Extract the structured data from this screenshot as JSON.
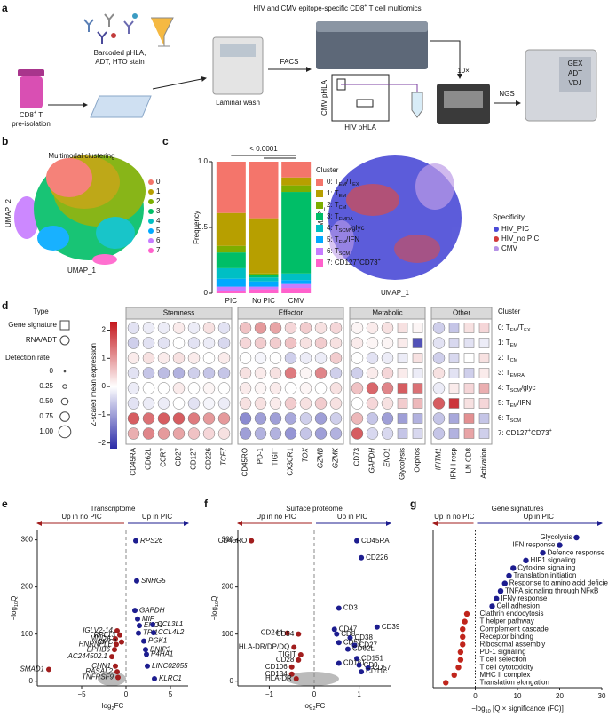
{
  "figure": {
    "panel_labels": [
      "a",
      "b",
      "c",
      "d",
      "e",
      "f",
      "g"
    ],
    "a": {
      "title": [
        "HIV and CMV epitope-specific CD8",
        "+",
        " T cell multiomics"
      ],
      "stain": [
        "Barcoded pHLA,",
        "ADT, HTO stain"
      ],
      "pre": [
        "CD8",
        "+",
        " T"
      ],
      "pre2": "pre-isolation",
      "laminar": "Laminar wash",
      "facs": "FACS",
      "gate_y": "CMV pHLA",
      "gate_x": "HIV pHLA",
      "tenx": "10×",
      "ngs": "NGS",
      "outputs": [
        "GEX",
        "ADT",
        "VDJ"
      ]
    },
    "b": {
      "title": "Multimodal clustering",
      "x_label": "UMAP_1",
      "y_label": "UMAP_2",
      "legend": [
        "0",
        "1",
        "2",
        "3",
        "4",
        "5",
        "6",
        "7"
      ],
      "colors": [
        "#f4756b",
        "#b79f00",
        "#7cae00",
        "#00be67",
        "#00bfc4",
        "#00a9ff",
        "#c77cff",
        "#ff61cc"
      ]
    },
    "c_umap": {
      "x_label": "UMAP_1",
      "y_label": "UMAP_2",
      "legend_title": "Specificity",
      "legend": [
        "HIV_PIC",
        "HIV_no PIC",
        "CMV"
      ],
      "colors": [
        "#4b4bd6",
        "#d23a3a",
        "#b592e6"
      ]
    }
  },
  "chart_data": [
    {
      "type": "stacked_bar",
      "p_label": "< 0.0001",
      "y_label": "Frequency",
      "legend_title": "Cluster",
      "categories": [
        "PIC",
        "No PIC",
        "CMV"
      ],
      "ylim": [
        0,
        1
      ],
      "yticks": [
        0,
        0.5,
        {
          "value": 1,
          "label": "1.0"
        }
      ],
      "series": [
        {
          "name": [
            "0: T",
            "EM",
            "/T",
            "EX"
          ],
          "color": "#f4756b",
          "values": [
            0.39,
            0.43,
            0.12
          ]
        },
        {
          "name": [
            "1: T",
            "EM"
          ],
          "color": "#b79f00",
          "values": [
            0.25,
            0.42,
            0.06
          ]
        },
        {
          "name": [
            "2: T",
            "CM"
          ],
          "color": "#7cae00",
          "values": [
            0.05,
            0.01,
            0.05
          ]
        },
        {
          "name": [
            "3: T",
            "EMRA"
          ],
          "color": "#00be67",
          "values": [
            0.12,
            0.02,
            0.62
          ]
        },
        {
          "name": [
            "4: T",
            "SCM",
            "/glyc"
          ],
          "color": "#00bfc4",
          "values": [
            0.08,
            0.03,
            0.05
          ]
        },
        {
          "name": [
            "5: T",
            "EM",
            "/IFN"
          ],
          "color": "#00a9ff",
          "values": [
            0.06,
            0.04,
            0.03
          ]
        },
        {
          "name": [
            "6: T",
            "SCM"
          ],
          "color": "#c77cff",
          "values": [
            0.03,
            0.02,
            0.03
          ]
        },
        {
          "name": [
            "7: CD127",
            "+",
            "CD73",
            "+"
          ],
          "color": "#ff61cc",
          "values": [
            0.02,
            0.03,
            0.04
          ],
          "sup": true
        }
      ]
    },
    {
      "type": "dot_matrix",
      "colorbar_label": "Z-scaled mean expression",
      "clim": [
        -2.2,
        2.3
      ],
      "cticks": [
        {
          "value": -2,
          "label": "−2"
        },
        {
          "value": -1,
          "label": "−1"
        },
        0,
        1,
        2
      ],
      "colors": [
        "#2b2ba8",
        "#ffffff",
        "#c4161c"
      ],
      "type_title": "Type",
      "types": [
        "Gene signature",
        "RNA/ADT"
      ],
      "size_title": "Detection rate",
      "size_ticks": [
        0,
        0.25,
        {
          "value": 0.5,
          "label": "0.50"
        },
        0.75,
        {
          "value": 1,
          "label": "1.00"
        }
      ],
      "legend_title": "Cluster",
      "row_labels": [
        [
          "0: T",
          "EM",
          "/T",
          "EX"
        ],
        [
          "1: T",
          "EM"
        ],
        [
          "2: T",
          "CM"
        ],
        [
          "3: T",
          "EMRA"
        ],
        [
          "4: T",
          "SCM",
          "/glyc"
        ],
        [
          "5: T",
          "EM",
          "/IFN"
        ],
        [
          "6: T",
          "SCM"
        ],
        [
          "7: CD127",
          "+",
          "CD73",
          "+"
        ]
      ],
      "groups": [
        {
          "name": "Stemness",
          "columns": [
            "CD45RA",
            "CD62L",
            "CCR7",
            "CD27",
            "CD127",
            "CD226",
            "TCF7"
          ],
          "kinds": [
            "adt",
            "adt",
            "adt",
            "adt",
            "adt",
            "adt",
            "rna"
          ],
          "values": [
            [
              -0.3,
              -0.2,
              -0.2,
              0.2,
              -0.2,
              0.3,
              -0.3
            ],
            [
              -0.5,
              -0.3,
              -0.3,
              0,
              -0.3,
              -0.2,
              -0.4
            ],
            [
              0.2,
              0.3,
              0.2,
              0.3,
              0.2,
              0,
              0.2
            ],
            [
              -0.3,
              -0.6,
              -0.7,
              -0.8,
              -0.5,
              -0.6,
              -0.6
            ],
            [
              -0.2,
              0,
              0,
              0.2,
              0,
              0.1,
              0
            ],
            [
              -0.3,
              -0.2,
              -0.2,
              0,
              -0.3,
              -0.1,
              -0.2
            ],
            [
              1.6,
              1.4,
              1.6,
              1.6,
              1.3,
              1.0,
              1.0
            ],
            [
              0.8,
              1.2,
              1.0,
              0.9,
              0.6,
              0.4,
              0.3
            ]
          ]
        },
        {
          "name": "Effector",
          "columns": [
            "CD45RO",
            "PD-1",
            "TIGIT",
            "CX3CR1",
            "TOX",
            "GZMB",
            "GZMK"
          ],
          "kinds": [
            "adt",
            "adt",
            "adt",
            "adt",
            "rna",
            "rna",
            "rna"
          ],
          "values": [
            [
              0.6,
              1.0,
              0.9,
              0.4,
              0.5,
              0.3,
              0.4
            ],
            [
              0.4,
              0.5,
              0.5,
              0.6,
              0.3,
              0.5,
              0.3
            ],
            [
              0,
              -0.1,
              0,
              -0.5,
              -0.2,
              -0.2,
              0.5
            ],
            [
              0.3,
              0.2,
              0.3,
              1.3,
              0.1,
              1.2,
              -0.5
            ],
            [
              0.2,
              0.1,
              0.2,
              0,
              0.1,
              0,
              0.3
            ],
            [
              0.3,
              0.3,
              0.2,
              0.5,
              0.3,
              0.5,
              0.3
            ],
            [
              -1.2,
              -1.0,
              -1.0,
              -0.9,
              -0.5,
              -1.0,
              -0.5
            ],
            [
              -1.0,
              -0.8,
              -0.8,
              -1.1,
              -0.6,
              -1.0,
              -0.8
            ]
          ]
        },
        {
          "name": "Metabolic",
          "columns": [
            "CD73",
            "GAPDH",
            "ENO1",
            "Glycolysis",
            "Oxphos"
          ],
          "kinds": [
            "adt",
            "rna",
            "rna",
            "signature",
            "signature"
          ],
          "values": [
            [
              0.1,
              0.2,
              0.3,
              0.3,
              0.1
            ],
            [
              0.2,
              0.1,
              0.1,
              0.2,
              -1.8
            ],
            [
              0,
              -0.3,
              -0.2,
              -0.2,
              0.3
            ],
            [
              -0.5,
              0.2,
              0.4,
              0.2,
              -0.2
            ],
            [
              0.6,
              1.5,
              1.2,
              1.6,
              1.4
            ],
            [
              0,
              0.4,
              0.3,
              0.5,
              0.7
            ],
            [
              0.7,
              -0.6,
              -1.0,
              -1.0,
              -0.8
            ],
            [
              1.6,
              -0.4,
              -0.4,
              -0.6,
              -0.4
            ]
          ]
        },
        {
          "name": "Other",
          "columns": [
            "IFITM1",
            "IFN-I resp",
            "LN CD8",
            "Activation"
          ],
          "kinds": [
            "rna",
            "signature",
            "signature",
            "signature"
          ],
          "values": [
            [
              -0.5,
              -0.6,
              0.3,
              0.4
            ],
            [
              -0.3,
              -0.4,
              -0.3,
              -0.2
            ],
            [
              -0.5,
              -0.4,
              0,
              0.3
            ],
            [
              0.3,
              -0.3,
              -0.5,
              0.2
            ],
            [
              -0.2,
              0.2,
              0.4,
              0.8
            ],
            [
              1.6,
              2.0,
              0.3,
              0.4
            ],
            [
              -0.6,
              -0.9,
              1.1,
              -0.6
            ],
            [
              -0.6,
              -0.8,
              0.9,
              -0.5
            ]
          ]
        }
      ]
    },
    {
      "type": "volcano",
      "title": "Transcriptome",
      "left_label": "Up in no PIC",
      "right_label": "Up in PIC",
      "x_label": [
        "log",
        "2",
        "FC"
      ],
      "y_label": [
        "−log",
        "10",
        "Q"
      ],
      "xlim": [
        -10,
        7
      ],
      "xticks": [
        {
          "value": -5,
          "label": "−5"
        },
        0,
        5
      ],
      "ylim": [
        -10,
        320
      ],
      "yticks": [
        0,
        100,
        200,
        300
      ],
      "series": [
        {
          "color": "#a11d1d",
          "labels": [
            "IGLV2-14",
            "RPL13",
            "MNDA",
            "CMC1",
            "HNRNPLL",
            "EPHB6",
            "AC244502.1",
            "CHN1",
            "RASAL2",
            "TNFRSF9",
            "SMAD1"
          ],
          "x": [
            -1.0,
            -0.7,
            -1.2,
            -0.5,
            -1.1,
            -1.3,
            -1.6,
            -1.2,
            -1.0,
            -0.9,
            -8.7
          ],
          "y": [
            107,
            98,
            90,
            83,
            78,
            67,
            52,
            32,
            20,
            8,
            25
          ]
        },
        {
          "color": "#1d1d8f",
          "labels": [
            "RPS26",
            "SNHG5",
            "GAPDH",
            "MIF",
            "ENO1",
            "TPI1",
            "CCL3L1",
            "CCL4L2",
            "PGK1",
            "BNIP3",
            "P4HA1",
            "LINC02055",
            "KLRC1"
          ],
          "x": [
            1.1,
            1.2,
            1.0,
            1.3,
            1.5,
            1.4,
            3.0,
            3.1,
            2.0,
            2.2,
            2.3,
            2.4,
            3.2
          ],
          "y": [
            298,
            213,
            150,
            132,
            118,
            102,
            120,
            103,
            85,
            67,
            57,
            32,
            5
          ]
        }
      ]
    },
    {
      "type": "volcano",
      "title": "Surface proteome",
      "left_label": "Up in no PIC",
      "right_label": "Up in PIC",
      "x_label": [
        "log",
        "2",
        "FC"
      ],
      "y_label": [
        "−log",
        "10",
        "Q"
      ],
      "xlim": [
        -1.7,
        1.7
      ],
      "xticks": [
        {
          "value": -1,
          "label": "−1"
        },
        0,
        1
      ],
      "ylim": [
        -10,
        320
      ],
      "yticks": [
        0,
        100,
        200,
        300
      ],
      "series": [
        {
          "color": "#a11d1d",
          "labels": [
            "CD45RO",
            "CD244",
            "CD54",
            "HLA-DR/DP/DQ",
            "TIGIT",
            "CD28",
            "CD106",
            "CD134",
            "HLA-DR"
          ],
          "x": [
            -1.4,
            -0.6,
            -0.35,
            -0.45,
            -0.3,
            -0.35,
            -0.5,
            -0.5,
            -0.4
          ],
          "y": [
            298,
            102,
            100,
            72,
            56,
            45,
            30,
            15,
            5
          ]
        },
        {
          "color": "#1d1d8f",
          "labels": [
            "CD45RA",
            "CD226",
            "CD3",
            "CD39",
            "CD47",
            "CD8",
            "CD38",
            "CD52",
            "CD27",
            "CD62L",
            "CD151",
            "CD161",
            "CD9",
            "CD57",
            "CD11c"
          ],
          "x": [
            0.95,
            1.05,
            0.55,
            1.4,
            0.45,
            0.5,
            0.8,
            0.55,
            0.9,
            0.75,
            0.95,
            0.55,
            1.0,
            1.2,
            1.05
          ],
          "y": [
            298,
            262,
            155,
            115,
            110,
            100,
            92,
            82,
            76,
            68,
            48,
            38,
            34,
            28,
            20
          ]
        }
      ]
    },
    {
      "type": "dot",
      "title": "Gene signatures",
      "left_label": "Up in no PIC",
      "right_label": "Up in PIC",
      "x_label": [
        "−log",
        "10",
        " [Q × significance (FC)]"
      ],
      "xlim": [
        -10,
        30
      ],
      "xticks": [
        0,
        10,
        20,
        30
      ],
      "pos_color": "#1d1d8f",
      "neg_color": "#c0251c",
      "categories": [
        "Glycolysis",
        "IFN response",
        "Defence response",
        "HIF1 signaling",
        "Cytokine signaling",
        "Translation initiation",
        "Response to amino acid deficiency",
        "TNFA signaling through NFκB",
        "IFNγ response",
        "Cell adhesion",
        "Clathrin endocytosis",
        "T helper pathway",
        "Complement cascade",
        "Receptor binding",
        "Ribosomal assembly",
        "PD-1 signaling",
        "T cell selection",
        "T cell cytotoxicity",
        "MHC II complex",
        "Translation elongation"
      ],
      "values": [
        24,
        20,
        16,
        12,
        9,
        8,
        7,
        6,
        5,
        4,
        -2,
        -2.5,
        -3,
        -3,
        -3,
        -3.5,
        -3.5,
        -4,
        -5,
        -7
      ]
    }
  ]
}
